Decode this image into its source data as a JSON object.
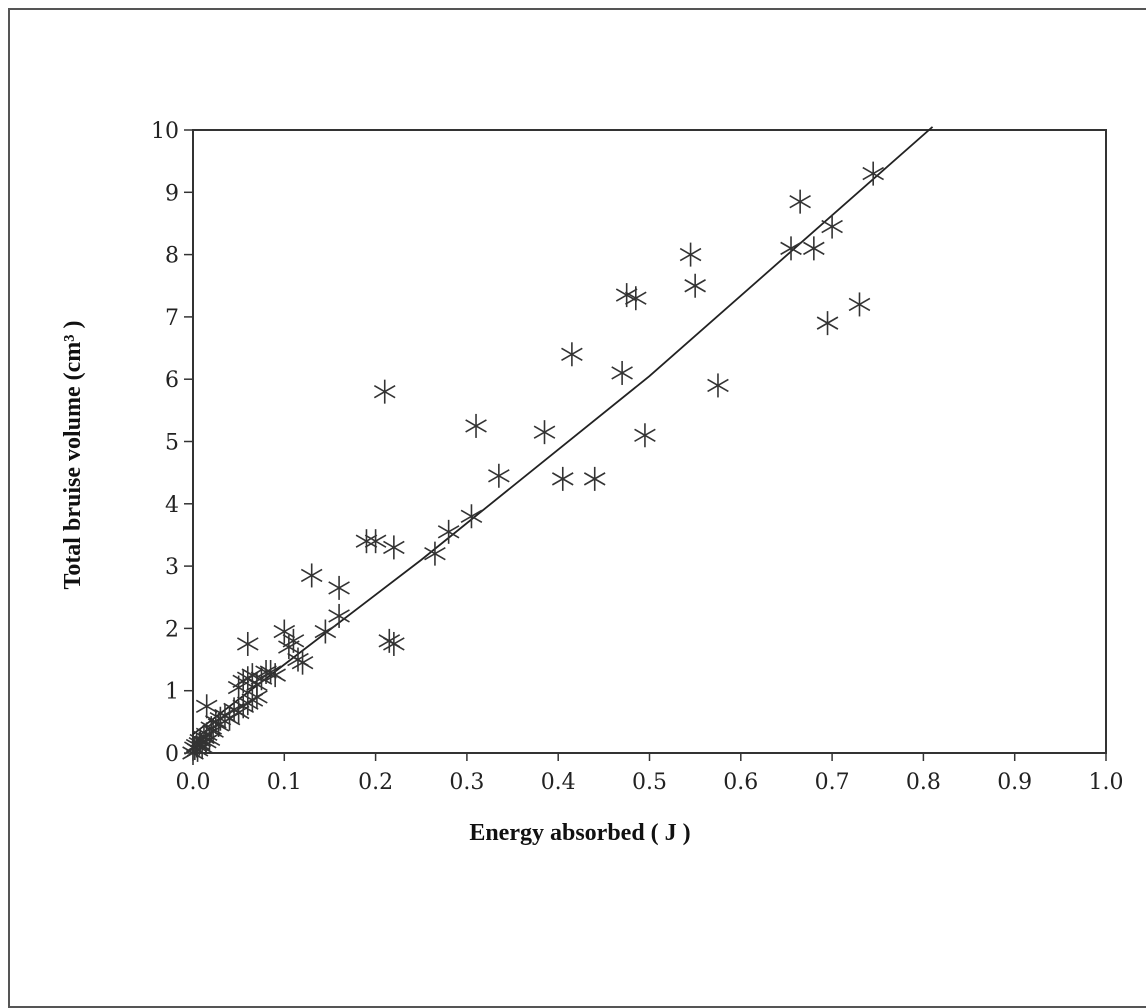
{
  "chart_data": {
    "type": "scatter",
    "title": "",
    "xlabel": "Energy absorbed ( J )",
    "ylabel": "Total bruise volume (cm³ )",
    "xlim": [
      0.0,
      1.0
    ],
    "ylim": [
      0,
      10
    ],
    "x_ticks": [
      "0.0",
      "0.1",
      "0.2",
      "0.3",
      "0.4",
      "0.5",
      "0.6",
      "0.7",
      "0.8",
      "0.9",
      "1.0"
    ],
    "y_ticks": [
      "0",
      "1",
      "2",
      "3",
      "4",
      "5",
      "6",
      "7",
      "8",
      "9",
      "10"
    ],
    "grid": false,
    "legend": "none",
    "marker": "asterisk",
    "series": [
      {
        "points": [
          [
            0.0,
            0.0
          ],
          [
            0.002,
            0.08
          ],
          [
            0.004,
            0.12
          ],
          [
            0.005,
            0.05
          ],
          [
            0.007,
            0.15
          ],
          [
            0.008,
            0.2
          ],
          [
            0.01,
            0.1
          ],
          [
            0.012,
            0.25
          ],
          [
            0.014,
            0.18
          ],
          [
            0.015,
            0.3
          ],
          [
            0.018,
            0.22
          ],
          [
            0.02,
            0.4
          ],
          [
            0.022,
            0.35
          ],
          [
            0.025,
            0.5
          ],
          [
            0.028,
            0.45
          ],
          [
            0.03,
            0.55
          ],
          [
            0.035,
            0.6
          ],
          [
            0.04,
            0.55
          ],
          [
            0.045,
            0.7
          ],
          [
            0.05,
            0.65
          ],
          [
            0.055,
            0.75
          ],
          [
            0.06,
            0.8
          ],
          [
            0.065,
            0.85
          ],
          [
            0.07,
            0.9
          ],
          [
            0.015,
            0.75
          ],
          [
            0.05,
            1.05
          ],
          [
            0.055,
            1.15
          ],
          [
            0.06,
            1.2
          ],
          [
            0.065,
            1.25
          ],
          [
            0.07,
            1.1
          ],
          [
            0.075,
            1.2
          ],
          [
            0.08,
            1.3
          ],
          [
            0.085,
            1.3
          ],
          [
            0.09,
            1.25
          ],
          [
            0.06,
            1.75
          ],
          [
            0.1,
            1.95
          ],
          [
            0.11,
            1.8
          ],
          [
            0.115,
            1.5
          ],
          [
            0.12,
            1.45
          ],
          [
            0.105,
            1.7
          ],
          [
            0.13,
            2.85
          ],
          [
            0.145,
            1.95
          ],
          [
            0.16,
            2.2
          ],
          [
            0.16,
            2.65
          ],
          [
            0.19,
            3.4
          ],
          [
            0.2,
            3.4
          ],
          [
            0.22,
            3.3
          ],
          [
            0.21,
            5.8
          ],
          [
            0.215,
            1.8
          ],
          [
            0.22,
            1.75
          ],
          [
            0.265,
            3.2
          ],
          [
            0.28,
            3.55
          ],
          [
            0.305,
            3.8
          ],
          [
            0.31,
            5.25
          ],
          [
            0.335,
            4.45
          ],
          [
            0.385,
            5.15
          ],
          [
            0.405,
            4.4
          ],
          [
            0.415,
            6.4
          ],
          [
            0.44,
            4.4
          ],
          [
            0.47,
            6.1
          ],
          [
            0.475,
            7.35
          ],
          [
            0.485,
            7.3
          ],
          [
            0.495,
            5.1
          ],
          [
            0.545,
            8.0
          ],
          [
            0.55,
            7.5
          ],
          [
            0.575,
            5.9
          ],
          [
            0.655,
            8.1
          ],
          [
            0.665,
            8.85
          ],
          [
            0.68,
            8.1
          ],
          [
            0.7,
            8.45
          ],
          [
            0.695,
            6.9
          ],
          [
            0.73,
            7.2
          ],
          [
            0.745,
            9.3
          ]
        ]
      }
    ],
    "fit_line": {
      "type": "line",
      "points": [
        [
          0.0,
          0.3
        ],
        [
          0.25,
          3.1
        ],
        [
          0.5,
          6.05
        ],
        [
          0.81,
          10.05
        ]
      ]
    }
  }
}
